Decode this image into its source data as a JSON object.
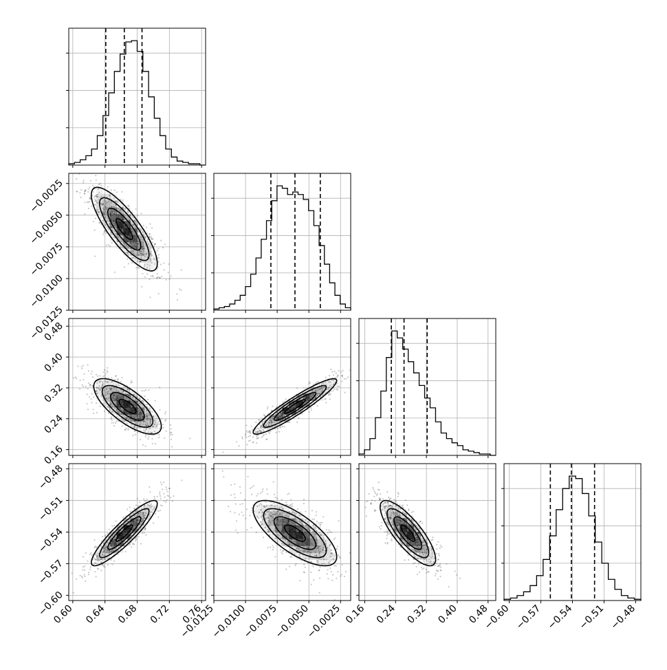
{
  "chart_data": {
    "type": "corner",
    "grid": true,
    "n_params": 4,
    "params": [
      {
        "range": [
          0.595,
          0.765
        ],
        "ticks": [
          0.6,
          0.64,
          0.68,
          0.72,
          0.76
        ],
        "tick_labels": [
          "0.60",
          "0.64",
          "0.68",
          "0.72",
          "0.76"
        ],
        "quantiles": [
          0.641,
          0.664,
          0.686
        ],
        "hist": [
          1,
          2,
          4,
          7,
          12,
          22,
          37,
          54,
          70,
          83,
          92,
          93,
          85,
          70,
          51,
          35,
          22,
          12,
          6,
          3,
          2,
          1,
          1,
          0
        ]
      },
      {
        "range": [
          -0.0125,
          -0.0017
        ],
        "ticks": [
          -0.0125,
          -0.01,
          -0.0075,
          -0.005,
          -0.0025
        ],
        "tick_labels": [
          "−0.0125",
          "−0.0100",
          "−0.0075",
          "−0.0050",
          "−0.0025"
        ],
        "quantiles": [
          -0.008,
          -0.0061,
          -0.0041
        ],
        "hist": [
          1,
          2,
          3,
          5,
          8,
          12,
          19,
          29,
          42,
          57,
          72,
          88,
          100,
          98,
          93,
          95,
          93,
          89,
          80,
          68,
          52,
          37,
          22,
          12,
          5,
          2
        ]
      },
      {
        "range": [
          0.145,
          0.5
        ],
        "ticks": [
          0.16,
          0.24,
          0.32,
          0.4,
          0.48
        ],
        "tick_labels": [
          "0.16",
          "0.24",
          "0.32",
          "0.40",
          "0.48"
        ],
        "quantiles": [
          0.229,
          0.262,
          0.322
        ],
        "hist": [
          1,
          4,
          12,
          27,
          46,
          70,
          89,
          84,
          76,
          67,
          59,
          50,
          41,
          34,
          24,
          16,
          12,
          9,
          7,
          4,
          3,
          2,
          1,
          1,
          0
        ]
      },
      {
        "range": [
          -0.605,
          -0.475
        ],
        "ticks": [
          -0.6,
          -0.57,
          -0.54,
          -0.51,
          -0.48
        ],
        "tick_labels": [
          "−0.60",
          "−0.57",
          "−0.54",
          "−0.51",
          "−0.48"
        ],
        "quantiles": [
          -0.561,
          -0.541,
          -0.519
        ],
        "hist": [
          1,
          2,
          4,
          7,
          12,
          20,
          33,
          52,
          73,
          90,
          100,
          98,
          86,
          68,
          47,
          30,
          17,
          9,
          4,
          2,
          1
        ]
      }
    ],
    "pairs": [
      {
        "x": 0,
        "y": 1,
        "mean": [
          0.664,
          -0.0061
        ],
        "std": [
          0.0205,
          0.00165
        ],
        "rho": -0.82
      },
      {
        "x": 0,
        "y": 2,
        "mean": [
          0.668,
          0.272
        ],
        "std": [
          0.021,
          0.036
        ],
        "rho": -0.72
      },
      {
        "x": 1,
        "y": 2,
        "mean": [
          -0.0061,
          0.272
        ],
        "std": [
          0.00165,
          0.036
        ],
        "rho": 0.93
      },
      {
        "x": 0,
        "y": 3,
        "mean": [
          0.664,
          -0.541
        ],
        "std": [
          0.0205,
          0.0155
        ],
        "rho": 0.9
      },
      {
        "x": 1,
        "y": 3,
        "mean": [
          -0.0061,
          -0.541
        ],
        "std": [
          0.00165,
          0.0155
        ],
        "rho": -0.72
      },
      {
        "x": 2,
        "y": 3,
        "mean": [
          0.272,
          -0.541
        ],
        "std": [
          0.036,
          0.0155
        ],
        "rho": -0.8
      }
    ],
    "contour_levels_sigma": [
      0.5,
      1.0,
      1.5,
      2.0
    ],
    "colors": {
      "line": "#000000",
      "grid": "#b0b0b0",
      "density": "#000000"
    }
  }
}
